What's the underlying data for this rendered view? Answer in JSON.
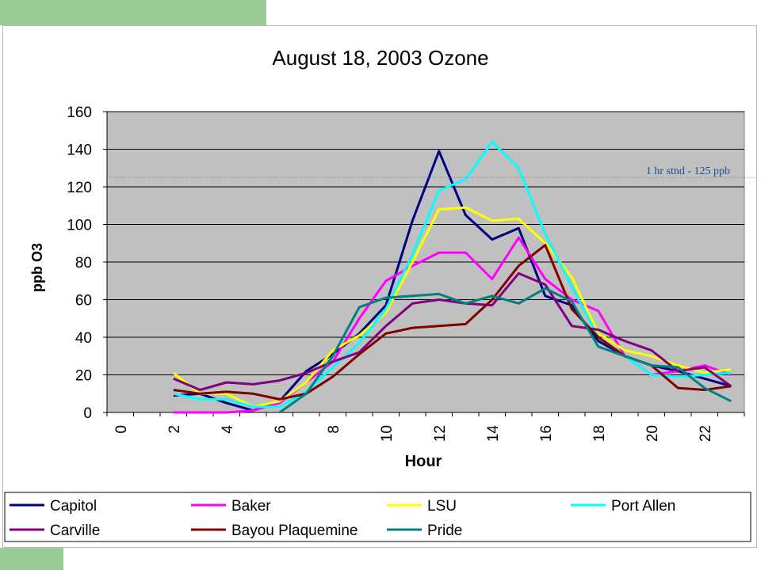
{
  "chart_data": {
    "type": "line",
    "title": "August 18, 2003 Ozone",
    "xlabel": "Hour",
    "ylabel": "ppb O3",
    "xlim": [
      0,
      23
    ],
    "ylim": [
      0,
      160
    ],
    "xticks": [
      "0",
      "2",
      "4",
      "6",
      "8",
      "10",
      "12",
      "14",
      "16",
      "18",
      "20",
      "22"
    ],
    "yticks": [
      "0",
      "20",
      "40",
      "60",
      "80",
      "100",
      "120",
      "140",
      "160"
    ],
    "grid": "horizontal",
    "plot_background": "#c0c0c0",
    "legend_position": "bottom",
    "annotations": [
      {
        "text": "1 hr stnd - 125 ppb",
        "y": 125,
        "style": "dotted",
        "color": "#1f4e99"
      }
    ],
    "x": [
      2,
      3,
      4,
      5,
      6,
      7,
      8,
      9,
      10,
      11,
      12,
      13,
      14,
      15,
      16,
      17,
      18,
      19,
      20,
      21,
      22,
      23
    ],
    "series": [
      {
        "name": "Capitol",
        "color": "#000080",
        "values": [
          9,
          10,
          5,
          1,
          6,
          22,
          31,
          42,
          57,
          102,
          139,
          105,
          92,
          98,
          62,
          57,
          38,
          30,
          25,
          22,
          18,
          14
        ]
      },
      {
        "name": "Baker",
        "color": "#ff00ff",
        "values": [
          0,
          0,
          0,
          1,
          5,
          16,
          27,
          50,
          70,
          78,
          85,
          85,
          71,
          93,
          71,
          60,
          54,
          30,
          20,
          22,
          25,
          20
        ]
      },
      {
        "name": "LSU",
        "color": "#ffff00",
        "values": [
          21,
          10,
          10,
          3,
          6,
          16,
          33,
          41,
          53,
          80,
          108,
          109,
          102,
          103,
          90,
          72,
          42,
          33,
          30,
          25,
          21,
          23
        ]
      },
      {
        "name": "Port Allen",
        "color": "#00ffff",
        "values": [
          10,
          7,
          7,
          3,
          3,
          11,
          24,
          37,
          55,
          84,
          118,
          124,
          144,
          130,
          95,
          67,
          40,
          30,
          20,
          19,
          20,
          21
        ]
      },
      {
        "name": "Carville",
        "color": "#800080",
        "values": [
          18,
          12,
          16,
          15,
          17,
          21,
          27,
          32,
          46,
          58,
          60,
          58,
          57,
          74,
          68,
          46,
          44,
          38,
          33,
          22,
          24,
          14
        ]
      },
      {
        "name": "Bayou Plaquemine",
        "color": "#800000",
        "values": [
          12,
          10,
          11,
          10,
          7,
          10,
          19,
          31,
          42,
          45,
          46,
          47,
          60,
          78,
          89,
          55,
          40,
          30,
          25,
          13,
          12,
          14
        ]
      },
      {
        "name": "Pride",
        "color": "#008080",
        "values": [
          null,
          null,
          null,
          null,
          0,
          10,
          30,
          56,
          61,
          62,
          63,
          58,
          62,
          58,
          66,
          59,
          35,
          30,
          25,
          24,
          13,
          6
        ]
      }
    ]
  }
}
